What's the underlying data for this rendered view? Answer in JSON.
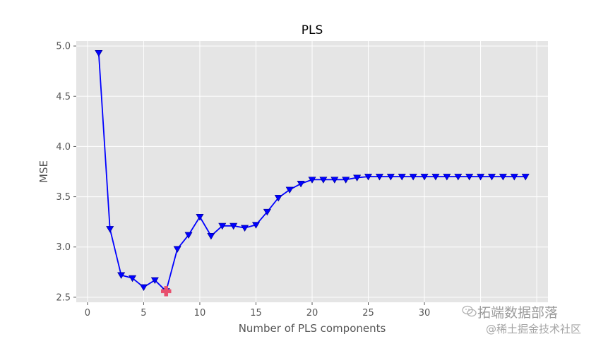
{
  "chart_data": {
    "type": "line",
    "title": "PLS",
    "xlabel": "Number of PLS components",
    "ylabel": "MSE",
    "xlim": [
      -1,
      41
    ],
    "ylim": [
      2.45,
      5.05
    ],
    "xticks": [
      0,
      5,
      10,
      15,
      20,
      25,
      30
    ],
    "yticks": [
      2.5,
      3.0,
      3.5,
      4.0,
      4.5,
      5.0
    ],
    "xtick_labels": [
      "0",
      "5",
      "10",
      "15",
      "20",
      "25",
      "30"
    ],
    "ytick_labels": [
      "2.5",
      "3.0",
      "3.5",
      "4.0",
      "4.5",
      "5.0"
    ],
    "grid": true,
    "series": [
      {
        "marker": "triangle-down",
        "color": "#0000ff",
        "x": [
          1,
          2,
          3,
          4,
          5,
          6,
          7,
          8,
          9,
          10,
          11,
          12,
          13,
          14,
          15,
          16,
          17,
          18,
          19,
          20,
          21,
          22,
          23,
          24,
          25,
          26,
          27,
          28,
          29,
          30,
          31,
          32,
          33,
          34,
          35,
          36,
          37,
          38,
          39
        ],
        "y": [
          4.93,
          3.18,
          2.72,
          2.69,
          2.6,
          2.67,
          2.56,
          2.98,
          3.12,
          3.3,
          3.11,
          3.21,
          3.21,
          3.19,
          3.22,
          3.35,
          3.49,
          3.57,
          3.63,
          3.67,
          3.67,
          3.67,
          3.67,
          3.69,
          3.7,
          3.7,
          3.7,
          3.7,
          3.7,
          3.7,
          3.7,
          3.7,
          3.7,
          3.7,
          3.7,
          3.7,
          3.7,
          3.7,
          3.7
        ]
      }
    ],
    "highlight": {
      "x": 7,
      "y": 2.56,
      "marker": "plus",
      "color": "#e8506e"
    }
  },
  "colors": {
    "plot_background": "#e5e5e5",
    "grid": "#ffffff",
    "line": "#0000ff",
    "highlight": "#e8506e"
  },
  "watermark": {
    "line1": "拓端数据部落",
    "line2": "@稀土掘金技术社区",
    "icon": "wechat-icon"
  }
}
